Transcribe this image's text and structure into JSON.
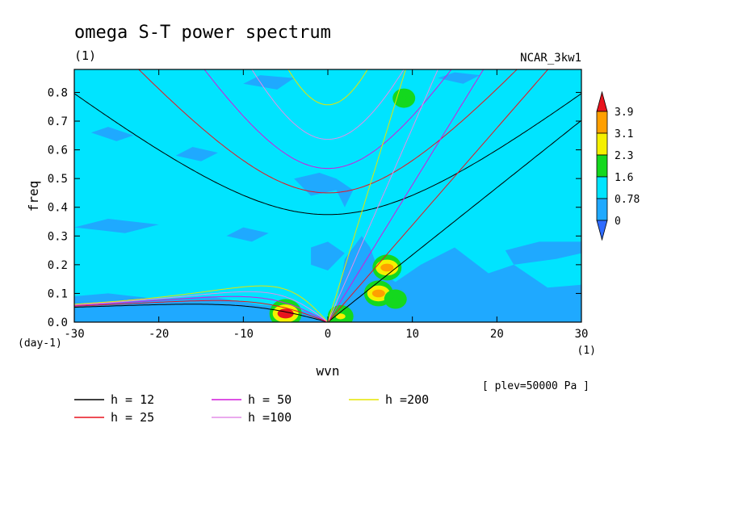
{
  "chart_data": {
    "type": "heatmap",
    "title": "omega S-T power spectrum",
    "subtitle_left": "(1)",
    "subtitle_right": "NCAR_3kw1",
    "xlabel": "wvn",
    "ylabel": "freq",
    "x_unit": "(1)",
    "y_unit": "(day-1)",
    "xlim": [
      -30,
      30
    ],
    "ylim": [
      0,
      0.88
    ],
    "x_ticks": [
      -30,
      -20,
      -10,
      0,
      10,
      20,
      30
    ],
    "y_ticks": [
      0.0,
      0.1,
      0.2,
      0.3,
      0.4,
      0.5,
      0.6,
      0.7,
      0.8
    ],
    "x_tick_labels": [
      "-30",
      "-20",
      "-10",
      "0",
      "10",
      "20",
      "30"
    ],
    "y_tick_labels": [
      "0.0",
      "0.1",
      "0.2",
      "0.3",
      "0.4",
      "0.5",
      "0.6",
      "0.7",
      "0.8"
    ],
    "colorbar": {
      "levels": [
        "0",
        "0.78",
        "1.6",
        "2.3",
        "3.1",
        "3.9"
      ],
      "colors": [
        "#2f6bff",
        "#1fa9ff",
        "#00e4ff",
        "#14d81e",
        "#f5f000",
        "#ff9f00",
        "#e8141e"
      ]
    },
    "background_color": "#00e4ff",
    "low_power_color": "#1fa9ff",
    "level_note": "[ plev=50000 Pa ]",
    "dispersion_curves": [
      {
        "label": "h = 12",
        "h": 12,
        "color": "#000000"
      },
      {
        "label": "h = 25",
        "h": 25,
        "color": "#e8141e"
      },
      {
        "label": "h = 50",
        "h": 50,
        "color": "#d21adb"
      },
      {
        "label": "h =100",
        "h": 100,
        "color": "#e38ee8"
      },
      {
        "label": "h =200",
        "h": 200,
        "color": "#e6e600"
      }
    ],
    "peaks": [
      {
        "x": -5,
        "y": 0.03,
        "level": "3.9"
      },
      {
        "x": 6,
        "y": 0.1,
        "level": "3.1"
      },
      {
        "x": 7,
        "y": 0.19,
        "level": "3.1"
      },
      {
        "x": 1.5,
        "y": 0.02,
        "level": "2.3"
      },
      {
        "x": 8,
        "y": 0.08,
        "level": "1.6"
      },
      {
        "x": 9,
        "y": 0.78,
        "level": "1.6"
      }
    ]
  }
}
